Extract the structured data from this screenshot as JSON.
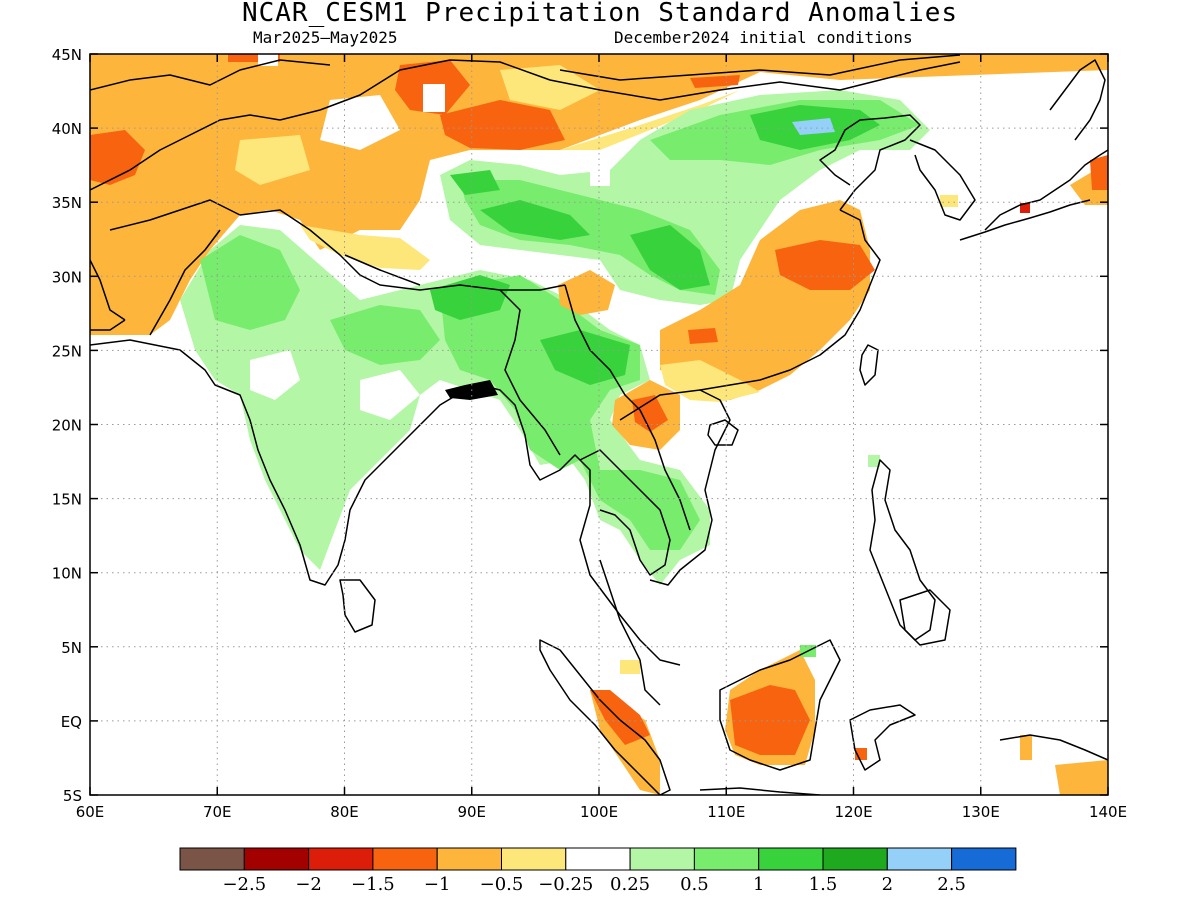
{
  "title": "NCAR_CESM1 Precipitation Standard Anomalies",
  "season": "Mar2025–May2025",
  "init": "December2024 initial conditions",
  "map": {
    "lon_range": [
      60,
      140
    ],
    "lat_range": [
      -5,
      45
    ],
    "lon_ticks": [
      "60E",
      "70E",
      "80E",
      "90E",
      "100E",
      "110E",
      "120E",
      "130E",
      "140E"
    ],
    "lat_ticks": [
      "45N",
      "40N",
      "35N",
      "30N",
      "25N",
      "20N",
      "15N",
      "10N",
      "5N",
      "EQ",
      "5S"
    ],
    "grid": "dotted"
  },
  "colorbar": {
    "colors": [
      "#7a5446",
      "#a30000",
      "#dc1d0a",
      "#f7630f",
      "#fdb53c",
      "#fee77a",
      "#ffffff",
      "#b3f6a6",
      "#78ec6c",
      "#37d23c",
      "#1fa91f",
      "#94d0f8",
      "#176bd6"
    ],
    "labels": [
      "−2.5",
      "−2",
      "−1.5",
      "−1",
      "−0.5",
      "−0.25",
      "0.25",
      "0.5",
      "1",
      "1.5",
      "2",
      "2.5"
    ]
  }
}
